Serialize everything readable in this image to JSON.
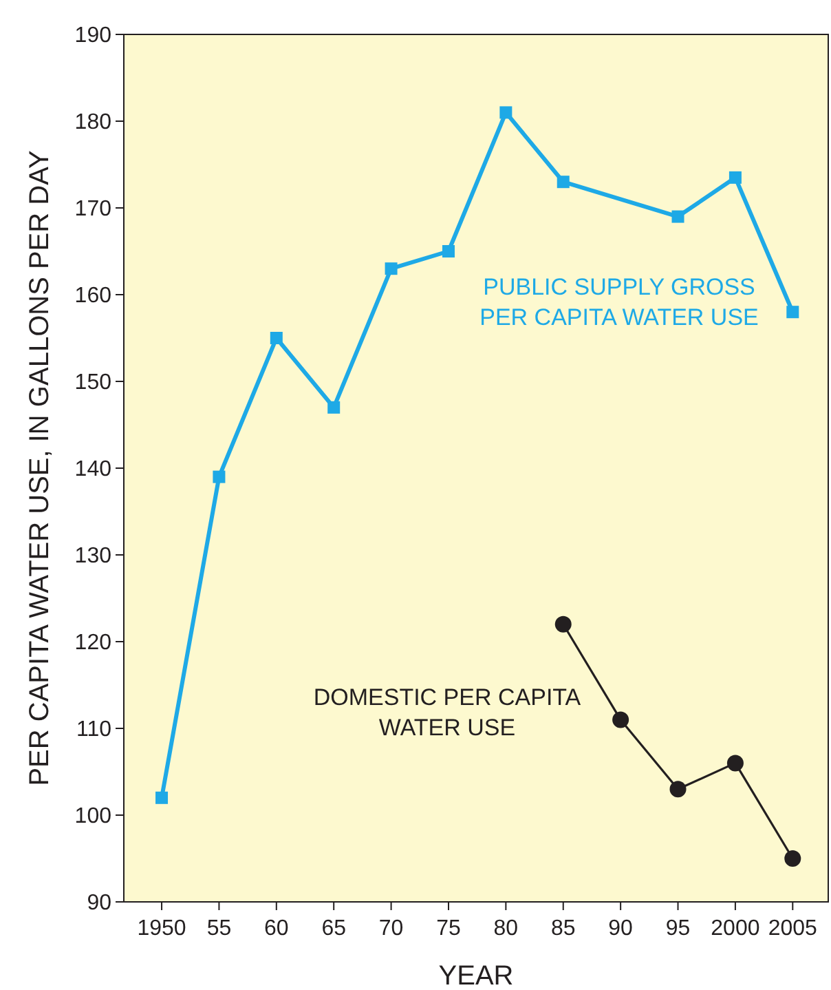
{
  "chart_data": {
    "type": "line",
    "xlabel": "YEAR",
    "ylabel": "PER CAPITA WATER USE, IN GALLONS PER DAY",
    "xlim": [
      1946.7,
      2008.1
    ],
    "ylim": [
      90,
      190
    ],
    "xticks": [
      {
        "value": 1950,
        "label": "1950"
      },
      {
        "value": 1955,
        "label": "55"
      },
      {
        "value": 1960,
        "label": "60"
      },
      {
        "value": 1965,
        "label": "65"
      },
      {
        "value": 1970,
        "label": "70"
      },
      {
        "value": 1975,
        "label": "75"
      },
      {
        "value": 1980,
        "label": "80"
      },
      {
        "value": 1985,
        "label": "85"
      },
      {
        "value": 1990,
        "label": "90"
      },
      {
        "value": 1995,
        "label": "95"
      },
      {
        "value": 2000,
        "label": "2000"
      },
      {
        "value": 2005,
        "label": "2005"
      }
    ],
    "yticks": [
      90,
      100,
      110,
      120,
      130,
      140,
      150,
      160,
      170,
      180,
      190
    ],
    "grid": false,
    "series": [
      {
        "name": "PUBLIC SUPPLY GROSS PER CAPITA WATER USE",
        "color": "#1ea9e6",
        "marker": "square",
        "x": [
          1950,
          1955,
          1960,
          1965,
          1970,
          1975,
          1980,
          1985,
          1995,
          2000,
          2005
        ],
        "values": [
          102,
          139,
          155,
          147,
          163,
          165,
          181,
          173,
          169,
          173.5,
          158
        ]
      },
      {
        "name": "DOMESTIC PER CAPITA WATER USE",
        "color": "#231f20",
        "marker": "circle",
        "x": [
          1985,
          1990,
          1995,
          2000,
          2005
        ],
        "values": [
          122,
          111,
          103,
          106,
          95
        ]
      }
    ]
  }
}
